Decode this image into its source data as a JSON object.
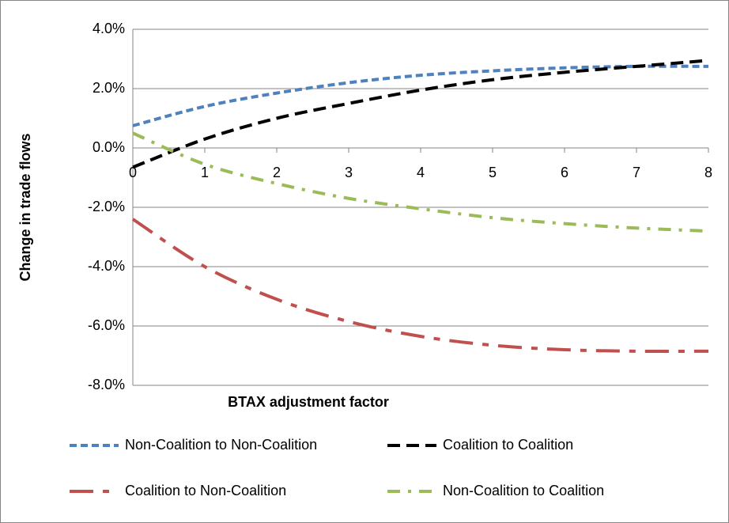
{
  "chart_data": {
    "type": "line",
    "xlabel": "BTAX adjustment factor",
    "ylabel": "Change in trade flows",
    "x": [
      0,
      1,
      2,
      3,
      4,
      5,
      6,
      7,
      8
    ],
    "xlim": [
      0,
      8
    ],
    "xticks": [
      0,
      1,
      2,
      3,
      4,
      5,
      6,
      7,
      8
    ],
    "ylim": [
      -8,
      4
    ],
    "yticks": [
      {
        "value": -8,
        "label": "-8.0%"
      },
      {
        "value": -6,
        "label": "-6.0%"
      },
      {
        "value": -4,
        "label": "-4.0%"
      },
      {
        "value": -2,
        "label": "-2.0%"
      },
      {
        "value": 0,
        "label": "0.0%"
      },
      {
        "value": 2,
        "label": "2.0%"
      },
      {
        "value": 4,
        "label": "4.0%"
      }
    ],
    "grid": true,
    "legend": "bottom",
    "series": [
      {
        "name": "Non-Coalition to Non-Coalition",
        "color": "#4f81bd",
        "values": [
          0.75,
          1.4,
          1.85,
          2.2,
          2.45,
          2.6,
          2.7,
          2.75,
          2.75
        ]
      },
      {
        "name": "Coalition to Coalition",
        "color": "#000000",
        "values": [
          -0.65,
          0.3,
          1.0,
          1.5,
          1.95,
          2.3,
          2.55,
          2.75,
          2.95
        ]
      },
      {
        "name": "Coalition to Non-Coalition",
        "color": "#c0504d",
        "values": [
          -2.4,
          -4.0,
          -5.1,
          -5.85,
          -6.35,
          -6.65,
          -6.8,
          -6.85,
          -6.85
        ]
      },
      {
        "name": "Non-Coalition to Coalition",
        "color": "#9bbb59",
        "values": [
          0.5,
          -0.55,
          -1.2,
          -1.7,
          -2.05,
          -2.35,
          -2.55,
          -2.7,
          -2.8
        ]
      }
    ]
  }
}
